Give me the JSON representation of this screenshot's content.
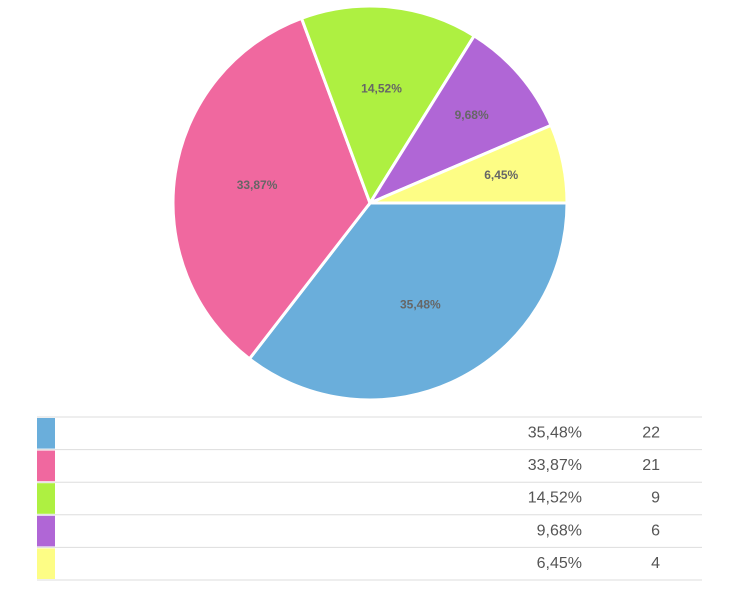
{
  "chart_data": {
    "type": "pie",
    "categories": [
      null,
      null,
      null,
      null,
      null
    ],
    "values": [
      35.48,
      33.87,
      14.52,
      9.68,
      6.45
    ],
    "value_labels": [
      "35,48%",
      "33,87%",
      "14,52%",
      "9,68%",
      "6,45%"
    ],
    "counts": [
      22,
      21,
      9,
      6,
      4
    ],
    "colors": [
      "#6aaedb",
      "#f0689f",
      "#aef041",
      "#b066d6",
      "#fdfd85"
    ]
  }
}
